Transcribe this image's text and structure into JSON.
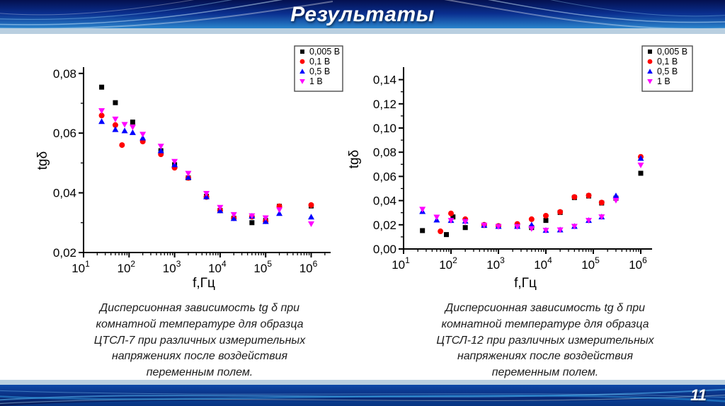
{
  "page": {
    "title": "Результаты",
    "page_number": "11"
  },
  "captions": {
    "left": "Дисперсионная зависимость tg δ при\nкомнатной температуре для образца\nЦТСЛ-7 при различных измерительных\nнапряжениях после воздействия\nпеременным полем.",
    "right": "Дисперсионная зависимость tg δ при\nкомнатной температуре для образца\nЦТСЛ-12 при различных измерительных\nнапряжениях после воздействия\nпеременным полем."
  },
  "chart_data": [
    {
      "id": "ctsl7",
      "type": "scatter",
      "sample": "ЦТСЛ-7",
      "x_scale": "log",
      "xlabel": "f,Гц",
      "ylabel": "tgδ",
      "x_range": [
        10,
        2500000
      ],
      "x_ticks_exponents": [
        1,
        2,
        3,
        4,
        5,
        6
      ],
      "y_range": [
        0.02,
        0.082
      ],
      "y_ticks": [
        0.02,
        0.04,
        0.06,
        0.08
      ],
      "y_tick_labels": [
        "0,02",
        "0,04",
        "0,06",
        "0,08"
      ],
      "y_minor_step": 0.01,
      "legend_position": "top-right",
      "grid": false,
      "series": [
        {
          "name": "0,005 В",
          "color": "#000000",
          "marker": "square",
          "points": [
            [
              25,
              0.0754
            ],
            [
              50,
              0.0702
            ],
            [
              120,
              0.0637
            ],
            [
              500,
              0.0541
            ],
            [
              1000,
              0.0494
            ],
            [
              2000,
              0.045
            ],
            [
              5000,
              0.0388
            ],
            [
              10000,
              0.0341
            ],
            [
              20000,
              0.0315
            ],
            [
              50000,
              0.03
            ],
            [
              100000,
              0.0307
            ],
            [
              200000,
              0.0355
            ],
            [
              1000000,
              0.0356
            ]
          ]
        },
        {
          "name": "0,1 В",
          "color": "#ff0000",
          "marker": "circle",
          "points": [
            [
              25,
              0.0659
            ],
            [
              50,
              0.0627
            ],
            [
              70,
              0.056
            ],
            [
              200,
              0.0572
            ],
            [
              500,
              0.0529
            ],
            [
              1000,
              0.0484
            ],
            [
              2000,
              0.045
            ],
            [
              5000,
              0.0386
            ],
            [
              10000,
              0.0341
            ],
            [
              20000,
              0.0315
            ],
            [
              50000,
              0.032
            ],
            [
              100000,
              0.0305
            ],
            [
              200000,
              0.0355
            ],
            [
              1000000,
              0.0359
            ]
          ]
        },
        {
          "name": "0,5 В",
          "color": "#0000ff",
          "marker": "triangle-up",
          "points": [
            [
              25,
              0.0639
            ],
            [
              50,
              0.0612
            ],
            [
              80,
              0.0608
            ],
            [
              120,
              0.0602
            ],
            [
              200,
              0.0584
            ],
            [
              500,
              0.0541
            ],
            [
              1000,
              0.0494
            ],
            [
              2000,
              0.0452
            ],
            [
              5000,
              0.0387
            ],
            [
              10000,
              0.034
            ],
            [
              20000,
              0.0314
            ],
            [
              50000,
              0.0322
            ],
            [
              100000,
              0.0304
            ],
            [
              200000,
              0.0331
            ],
            [
              1000000,
              0.0319
            ]
          ]
        },
        {
          "name": "1 В",
          "color": "#ff00ff",
          "marker": "triangle-down",
          "points": [
            [
              25,
              0.0675
            ],
            [
              50,
              0.0647
            ],
            [
              80,
              0.0629
            ],
            [
              120,
              0.062
            ],
            [
              200,
              0.0596
            ],
            [
              500,
              0.0556
            ],
            [
              1000,
              0.0505
            ],
            [
              2000,
              0.0465
            ],
            [
              5000,
              0.0398
            ],
            [
              10000,
              0.0351
            ],
            [
              20000,
              0.0327
            ],
            [
              50000,
              0.0323
            ],
            [
              100000,
              0.0316
            ],
            [
              200000,
              0.0343
            ],
            [
              1000000,
              0.0296
            ]
          ]
        }
      ]
    },
    {
      "id": "ctsl12",
      "type": "scatter",
      "sample": "ЦТСЛ-12",
      "x_scale": "log",
      "xlabel": "f,Гц",
      "ylabel": "tgδ",
      "x_range": [
        10,
        2000000
      ],
      "x_ticks_exponents": [
        1,
        2,
        3,
        4,
        5,
        6
      ],
      "y_range": [
        0.0,
        0.149
      ],
      "y_ticks": [
        0.0,
        0.02,
        0.04,
        0.06,
        0.08,
        0.1,
        0.12,
        0.14
      ],
      "y_tick_labels": [
        "0,00",
        "0,02",
        "0,04",
        "0,06",
        "0,08",
        "0,10",
        "0,12",
        "0,14"
      ],
      "y_minor_step": 0.01,
      "legend_position": "top-right",
      "grid": false,
      "series": [
        {
          "name": "0,005 В",
          "color": "#000000",
          "marker": "square",
          "points": [
            [
              25,
              0.0152
            ],
            [
              80,
              0.0119
            ],
            [
              110,
              0.0265
            ],
            [
              200,
              0.0177
            ],
            [
              500,
              0.0195
            ],
            [
              1000,
              0.0187
            ],
            [
              2500,
              0.0187
            ],
            [
              5000,
              0.0177
            ],
            [
              10000,
              0.0236
            ],
            [
              20000,
              0.0302
            ],
            [
              40000,
              0.0425
            ],
            [
              80000,
              0.0438
            ],
            [
              150000,
              0.038
            ],
            [
              300000,
              0.042
            ],
            [
              1000000,
              0.0626
            ]
          ]
        },
        {
          "name": "0,1 В",
          "color": "#ff0000",
          "marker": "circle",
          "points": [
            [
              60,
              0.0146
            ],
            [
              100,
              0.0294
            ],
            [
              200,
              0.0246
            ],
            [
              500,
              0.02
            ],
            [
              1000,
              0.019
            ],
            [
              2500,
              0.0207
            ],
            [
              5000,
              0.0246
            ],
            [
              10000,
              0.0275
            ],
            [
              20000,
              0.0306
            ],
            [
              40000,
              0.043
            ],
            [
              80000,
              0.0442
            ],
            [
              150000,
              0.0384
            ],
            [
              1000000,
              0.0762
            ]
          ]
        },
        {
          "name": "0,5 В",
          "color": "#0000ff",
          "marker": "triangle-up",
          "points": [
            [
              25,
              0.031
            ],
            [
              50,
              0.024
            ],
            [
              100,
              0.0236
            ],
            [
              200,
              0.023
            ],
            [
              500,
              0.0197
            ],
            [
              1000,
              0.0187
            ],
            [
              2500,
              0.0187
            ],
            [
              5000,
              0.0199
            ],
            [
              10000,
              0.0154
            ],
            [
              20000,
              0.0158
            ],
            [
              40000,
              0.0187
            ],
            [
              80000,
              0.0236
            ],
            [
              150000,
              0.0265
            ],
            [
              300000,
              0.044
            ],
            [
              1000000,
              0.0749
            ]
          ]
        },
        {
          "name": "1 В",
          "color": "#ff00ff",
          "marker": "triangle-down",
          "points": [
            [
              25,
              0.0328
            ],
            [
              50,
              0.0263
            ],
            [
              100,
              0.0236
            ],
            [
              200,
              0.0226
            ],
            [
              500,
              0.0197
            ],
            [
              1000,
              0.0185
            ],
            [
              2500,
              0.0185
            ],
            [
              5000,
              0.0168
            ],
            [
              10000,
              0.0154
            ],
            [
              20000,
              0.0158
            ],
            [
              40000,
              0.0187
            ],
            [
              80000,
              0.0236
            ],
            [
              150000,
              0.0265
            ],
            [
              300000,
              0.0402
            ],
            [
              1000000,
              0.0694
            ]
          ]
        }
      ]
    }
  ]
}
